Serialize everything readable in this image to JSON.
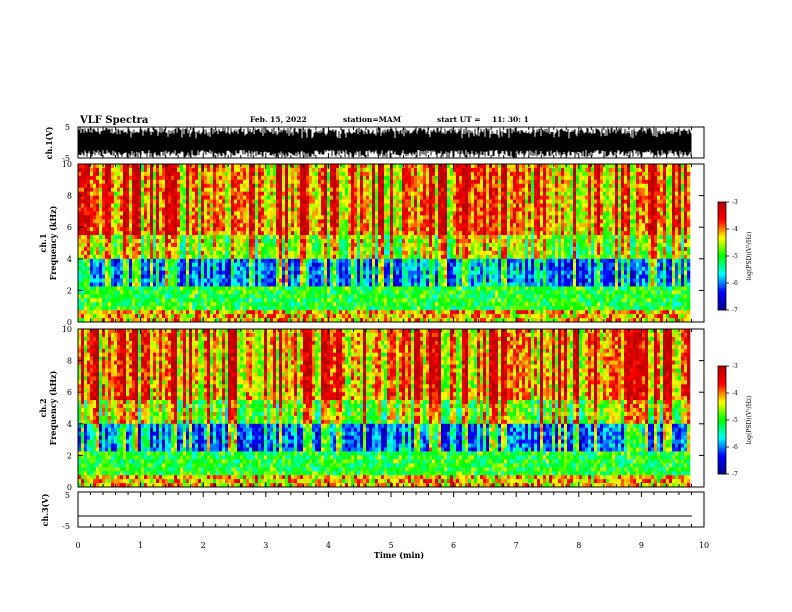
{
  "header": {
    "title": "VLF Spectra",
    "date": "Feb. 15, 2022",
    "station": "station=MAM",
    "start_label": "start UT =",
    "start_time": "11: 30: 1"
  },
  "chart_data": [
    {
      "type": "line",
      "panel": "ch1-waveform",
      "ylabel": "ch.1(V)",
      "ylim": [
        -5,
        5
      ],
      "yticks": [
        "5",
        "-5"
      ],
      "xlim": [
        0,
        10
      ],
      "description_values": {
        "max_amplitude": 5,
        "min_amplitude": -5
      }
    },
    {
      "type": "heatmap",
      "panel": "ch1-spectrogram",
      "ylabel_line1": "ch.1",
      "ylabel_line2": "Frequency (kHz)",
      "ylim": [
        0,
        10
      ],
      "yticks": [
        "0",
        "2",
        "4",
        "6",
        "8",
        "10"
      ],
      "xlim": [
        0,
        10
      ],
      "colorbar": {
        "label": "log(PSD)(V²/Hz)",
        "range": [
          -7,
          -3
        ],
        "ticks": [
          "-3",
          "-4",
          "-5",
          "-6",
          "-7"
        ]
      }
    },
    {
      "type": "heatmap",
      "panel": "ch2-spectrogram",
      "ylabel_line1": "ch.2",
      "ylabel_line2": "Frequency (kHz)",
      "ylim": [
        0,
        10
      ],
      "yticks": [
        "0",
        "2",
        "4",
        "6",
        "8",
        "10"
      ],
      "xlim": [
        0,
        10
      ],
      "colorbar": {
        "label": "log(PSD)(V²/Hz)",
        "range": [
          -7,
          -3
        ],
        "ticks": [
          "-3",
          "-4",
          "-5",
          "-6",
          "-7"
        ]
      }
    },
    {
      "type": "line",
      "panel": "ch3-waveform",
      "ylabel": "ch.3(V)",
      "ylim": [
        -5,
        5
      ],
      "yticks": [
        "5",
        "-5"
      ],
      "xlim": [
        0,
        10
      ],
      "xlabel": "Time (min)",
      "xticks": [
        "0",
        "1",
        "2",
        "3",
        "4",
        "5",
        "6",
        "7",
        "8",
        "9",
        "10"
      ],
      "flat_value": -2
    }
  ],
  "colors": {
    "axis": "#000000",
    "colormap": [
      "#00008c",
      "#0000ff",
      "#00ffff",
      "#00ff00",
      "#ffff00",
      "#ff0000",
      "#b40000"
    ]
  }
}
